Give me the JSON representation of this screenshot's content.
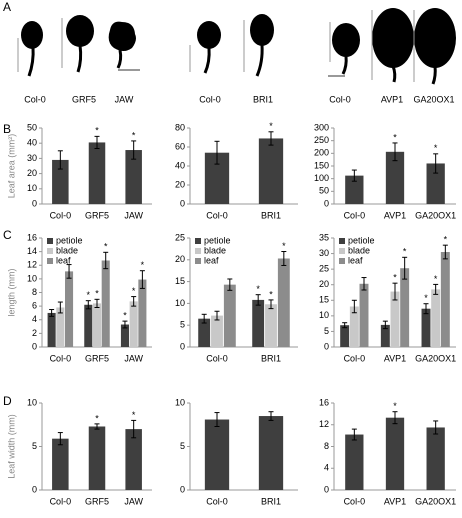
{
  "panel_labels": [
    "A",
    "B",
    "C",
    "D"
  ],
  "panel_a": {
    "labels": [
      "Col-0",
      "GRF5",
      "JAW",
      "Col-0",
      "BRI1",
      "Col-0",
      "AVP1",
      "GA20OX1"
    ]
  },
  "chart_data": [
    {
      "type": "bar",
      "ylabel": "Leaf area (mm²)",
      "categories": [
        "Col-0",
        "GRF5",
        "JAW"
      ],
      "values": [
        29,
        40.5,
        35.5
      ],
      "errors": [
        6,
        4,
        6
      ],
      "color": "#3f3f3f",
      "ylim": [
        0,
        50
      ],
      "yticks": [
        0,
        10,
        20,
        30,
        40,
        50
      ],
      "annotations": [
        {
          "x": "GRF5",
          "text": "*"
        },
        {
          "x": "JAW",
          "text": "*"
        }
      ]
    },
    {
      "type": "bar",
      "categories": [
        "Col-0",
        "BRI1"
      ],
      "values": [
        54,
        69
      ],
      "errors": [
        12,
        7
      ],
      "color": "#3f3f3f",
      "ylim": [
        0,
        80
      ],
      "yticks": [
        0,
        20,
        40,
        60,
        80
      ],
      "annotations": [
        {
          "x": "BRI1",
          "text": "*"
        }
      ]
    },
    {
      "type": "bar",
      "categories": [
        "Col-0",
        "AVP1",
        "GA20OX1"
      ],
      "values": [
        112,
        206,
        160
      ],
      "errors": [
        22,
        35,
        38
      ],
      "color": "#3f3f3f",
      "ylim": [
        0,
        300
      ],
      "yticks": [
        0,
        50,
        100,
        150,
        200,
        250,
        300
      ],
      "annotations": [
        {
          "x": "AVP1",
          "text": "*"
        },
        {
          "x": "GA20OX1",
          "text": "*"
        }
      ]
    },
    {
      "type": "bar",
      "ylabel": "length (mm)",
      "categories": [
        "Col-0",
        "GRF5",
        "JAW"
      ],
      "legend": "upper left",
      "series": [
        {
          "name": "petiole",
          "color": "#3f3f3f",
          "values": [
            5,
            6.2,
            3.3
          ],
          "errors": [
            0.5,
            0.6,
            0.5
          ]
        },
        {
          "name": "blade",
          "color": "#c8c8c8",
          "values": [
            5.8,
            6.4,
            6.7
          ],
          "errors": [
            0.8,
            0.6,
            0.7
          ]
        },
        {
          "name": "leaf",
          "color": "#8c8c8c",
          "values": [
            11.1,
            12.7,
            9.9
          ],
          "errors": [
            1,
            1.2,
            1.3
          ]
        }
      ],
      "ylim": [
        0,
        16
      ],
      "yticks": [
        0,
        2,
        4,
        6,
        8,
        10,
        12,
        14,
        16
      ],
      "annotations": [
        {
          "x": "GRF5",
          "series": "petiole",
          "text": "*"
        },
        {
          "x": "GRF5",
          "series": "blade",
          "text": "*"
        },
        {
          "x": "GRF5",
          "series": "leaf",
          "text": "*"
        },
        {
          "x": "JAW",
          "series": "petiole",
          "text": "*"
        },
        {
          "x": "JAW",
          "series": "blade",
          "text": "*"
        },
        {
          "x": "JAW",
          "series": "leaf",
          "text": "*"
        }
      ]
    },
    {
      "type": "bar",
      "categories": [
        "Col-0",
        "BRI1"
      ],
      "legend": "upper left",
      "series": [
        {
          "name": "petiole",
          "color": "#3f3f3f",
          "values": [
            6.5,
            10.8
          ],
          "errors": [
            1,
            1.2
          ]
        },
        {
          "name": "blade",
          "color": "#c8c8c8",
          "values": [
            7.2,
            9.8
          ],
          "errors": [
            1,
            1
          ]
        },
        {
          "name": "leaf",
          "color": "#8c8c8c",
          "values": [
            14.3,
            20.3
          ],
          "errors": [
            1.3,
            1.6
          ]
        }
      ],
      "ylim": [
        0,
        25
      ],
      "yticks": [
        0,
        5,
        10,
        15,
        20,
        25
      ],
      "annotations": [
        {
          "x": "BRI1",
          "series": "petiole",
          "text": "*"
        },
        {
          "x": "BRI1",
          "series": "blade",
          "text": "*"
        },
        {
          "x": "BRI1",
          "series": "leaf",
          "text": "*"
        }
      ]
    },
    {
      "type": "bar",
      "categories": [
        "Col-0",
        "AVP1",
        "GA20OX1"
      ],
      "legend": "upper left",
      "series": [
        {
          "name": "petiole",
          "color": "#3f3f3f",
          "values": [
            7,
            7.1,
            12.3
          ],
          "errors": [
            0.8,
            1.2,
            1.6
          ]
        },
        {
          "name": "blade",
          "color": "#c8c8c8",
          "values": [
            13,
            17.8,
            18.5
          ],
          "errors": [
            2,
            2.7,
            1.6
          ]
        },
        {
          "name": "leaf",
          "color": "#8c8c8c",
          "values": [
            20.3,
            25.3,
            30.5
          ],
          "errors": [
            2,
            3.5,
            2.2
          ]
        }
      ],
      "ylim": [
        0,
        35
      ],
      "yticks": [
        0,
        5,
        10,
        15,
        20,
        25,
        30,
        35
      ],
      "annotations": [
        {
          "x": "AVP1",
          "series": "blade",
          "text": "*"
        },
        {
          "x": "AVP1",
          "series": "leaf",
          "text": "*"
        },
        {
          "x": "GA20OX1",
          "series": "petiole",
          "text": "*"
        },
        {
          "x": "GA20OX1",
          "series": "blade",
          "text": "*"
        },
        {
          "x": "GA20OX1",
          "series": "leaf",
          "text": "*"
        }
      ]
    },
    {
      "type": "bar",
      "ylabel": "Leaf width (mm)",
      "categories": [
        "Col-0",
        "GRF5",
        "JAW"
      ],
      "values": [
        5.9,
        7.3,
        7.0
      ],
      "errors": [
        0.7,
        0.3,
        1.0
      ],
      "color": "#3f3f3f",
      "ylim": [
        0,
        10
      ],
      "yticks": [
        0,
        5,
        10
      ],
      "annotations": [
        {
          "x": "GRF5",
          "text": "*"
        },
        {
          "x": "JAW",
          "text": "*"
        }
      ]
    },
    {
      "type": "bar",
      "categories": [
        "Col-0",
        "BRI1"
      ],
      "values": [
        8.1,
        8.5
      ],
      "errors": [
        0.8,
        0.5
      ],
      "color": "#3f3f3f",
      "ylim": [
        0,
        10
      ],
      "yticks": [
        0,
        5,
        10
      ]
    },
    {
      "type": "bar",
      "categories": [
        "Col-0",
        "AVP1",
        "GA20OX1"
      ],
      "values": [
        10.2,
        13.3,
        11.5
      ],
      "errors": [
        1,
        1.1,
        1.2
      ],
      "color": "#3f3f3f",
      "ylim": [
        0,
        16
      ],
      "yticks": [
        0,
        4,
        8,
        12,
        16
      ],
      "annotations": [
        {
          "x": "AVP1",
          "text": "*"
        }
      ]
    }
  ]
}
